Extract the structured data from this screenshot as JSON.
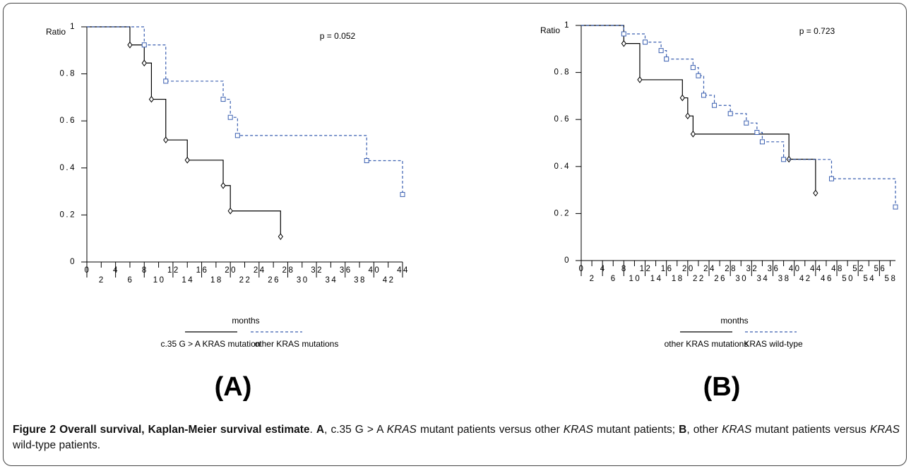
{
  "chart_data": [
    {
      "type": "step",
      "panel_label": "(A)",
      "y_label": "Ratio",
      "x_label": "months",
      "annotation": "p = 0.052",
      "xlim": [
        0,
        44
      ],
      "ylim": [
        0,
        1
      ],
      "xticks": [
        0,
        2,
        4,
        6,
        8,
        10,
        12,
        14,
        16,
        18,
        20,
        22,
        24,
        26,
        28,
        30,
        32,
        34,
        36,
        38,
        40,
        42,
        44
      ],
      "yticks": [
        0,
        0.2,
        0.4,
        0.6,
        0.8,
        1
      ],
      "series": [
        {
          "name": "c.35 G > A KRAS mutation",
          "color": "#000000",
          "marker": "diamond",
          "dash": false,
          "x": [
            0,
            6,
            8,
            9,
            11,
            14,
            19,
            20,
            27
          ],
          "values": [
            1,
            0.923,
            0.846,
            0.692,
            0.519,
            0.433,
            0.325,
            0.217,
            0.108
          ]
        },
        {
          "name": "other KRAS mutations",
          "color": "#3a5fb0",
          "marker": "square",
          "dash": true,
          "x": [
            0,
            8,
            11,
            19,
            20,
            21,
            39,
            44
          ],
          "values": [
            1,
            0.923,
            0.769,
            0.692,
            0.615,
            0.538,
            0.431,
            0.287
          ]
        }
      ]
    },
    {
      "type": "step",
      "panel_label": "(B)",
      "y_label": "Ratio",
      "x_label": "months",
      "annotation": "p = 0.723",
      "xlim": [
        0,
        59
      ],
      "ylim": [
        0,
        1
      ],
      "xticks": [
        0,
        2,
        4,
        6,
        8,
        10,
        12,
        14,
        16,
        18,
        20,
        22,
        24,
        26,
        28,
        30,
        32,
        34,
        36,
        38,
        40,
        42,
        44,
        46,
        48,
        50,
        52,
        54,
        56,
        58
      ],
      "yticks": [
        0,
        0.2,
        0.4,
        0.6,
        0.8,
        1
      ],
      "series": [
        {
          "name": "other KRAS mutations",
          "color": "#000000",
          "marker": "diamond",
          "dash": false,
          "x": [
            0,
            8,
            11,
            19,
            20,
            21,
            39,
            44
          ],
          "values": [
            1,
            0.923,
            0.769,
            0.692,
            0.615,
            0.538,
            0.431,
            0.287
          ]
        },
        {
          "name": "KRAS wild-type",
          "color": "#3a5fb0",
          "marker": "square",
          "dash": true,
          "x": [
            0,
            8,
            12,
            15,
            16,
            21,
            22,
            23,
            25,
            28,
            31,
            33,
            34,
            38,
            47,
            59
          ],
          "values": [
            1,
            0.964,
            0.929,
            0.893,
            0.857,
            0.821,
            0.786,
            0.703,
            0.66,
            0.625,
            0.585,
            0.545,
            0.505,
            0.43,
            0.348,
            0.228
          ]
        }
      ]
    }
  ],
  "caption": [
    "Figure 2 Overall survival, Kaplan-Meier survival estimate",
    ". ",
    "A",
    ", c.35 G > A ",
    "KRAS",
    " mutant patients versus other ",
    "KRAS",
    " mutant patients; ",
    "B",
    ", other ",
    "KRAS",
    " mutant patients versus ",
    "KRAS",
    " wild-type patients."
  ]
}
